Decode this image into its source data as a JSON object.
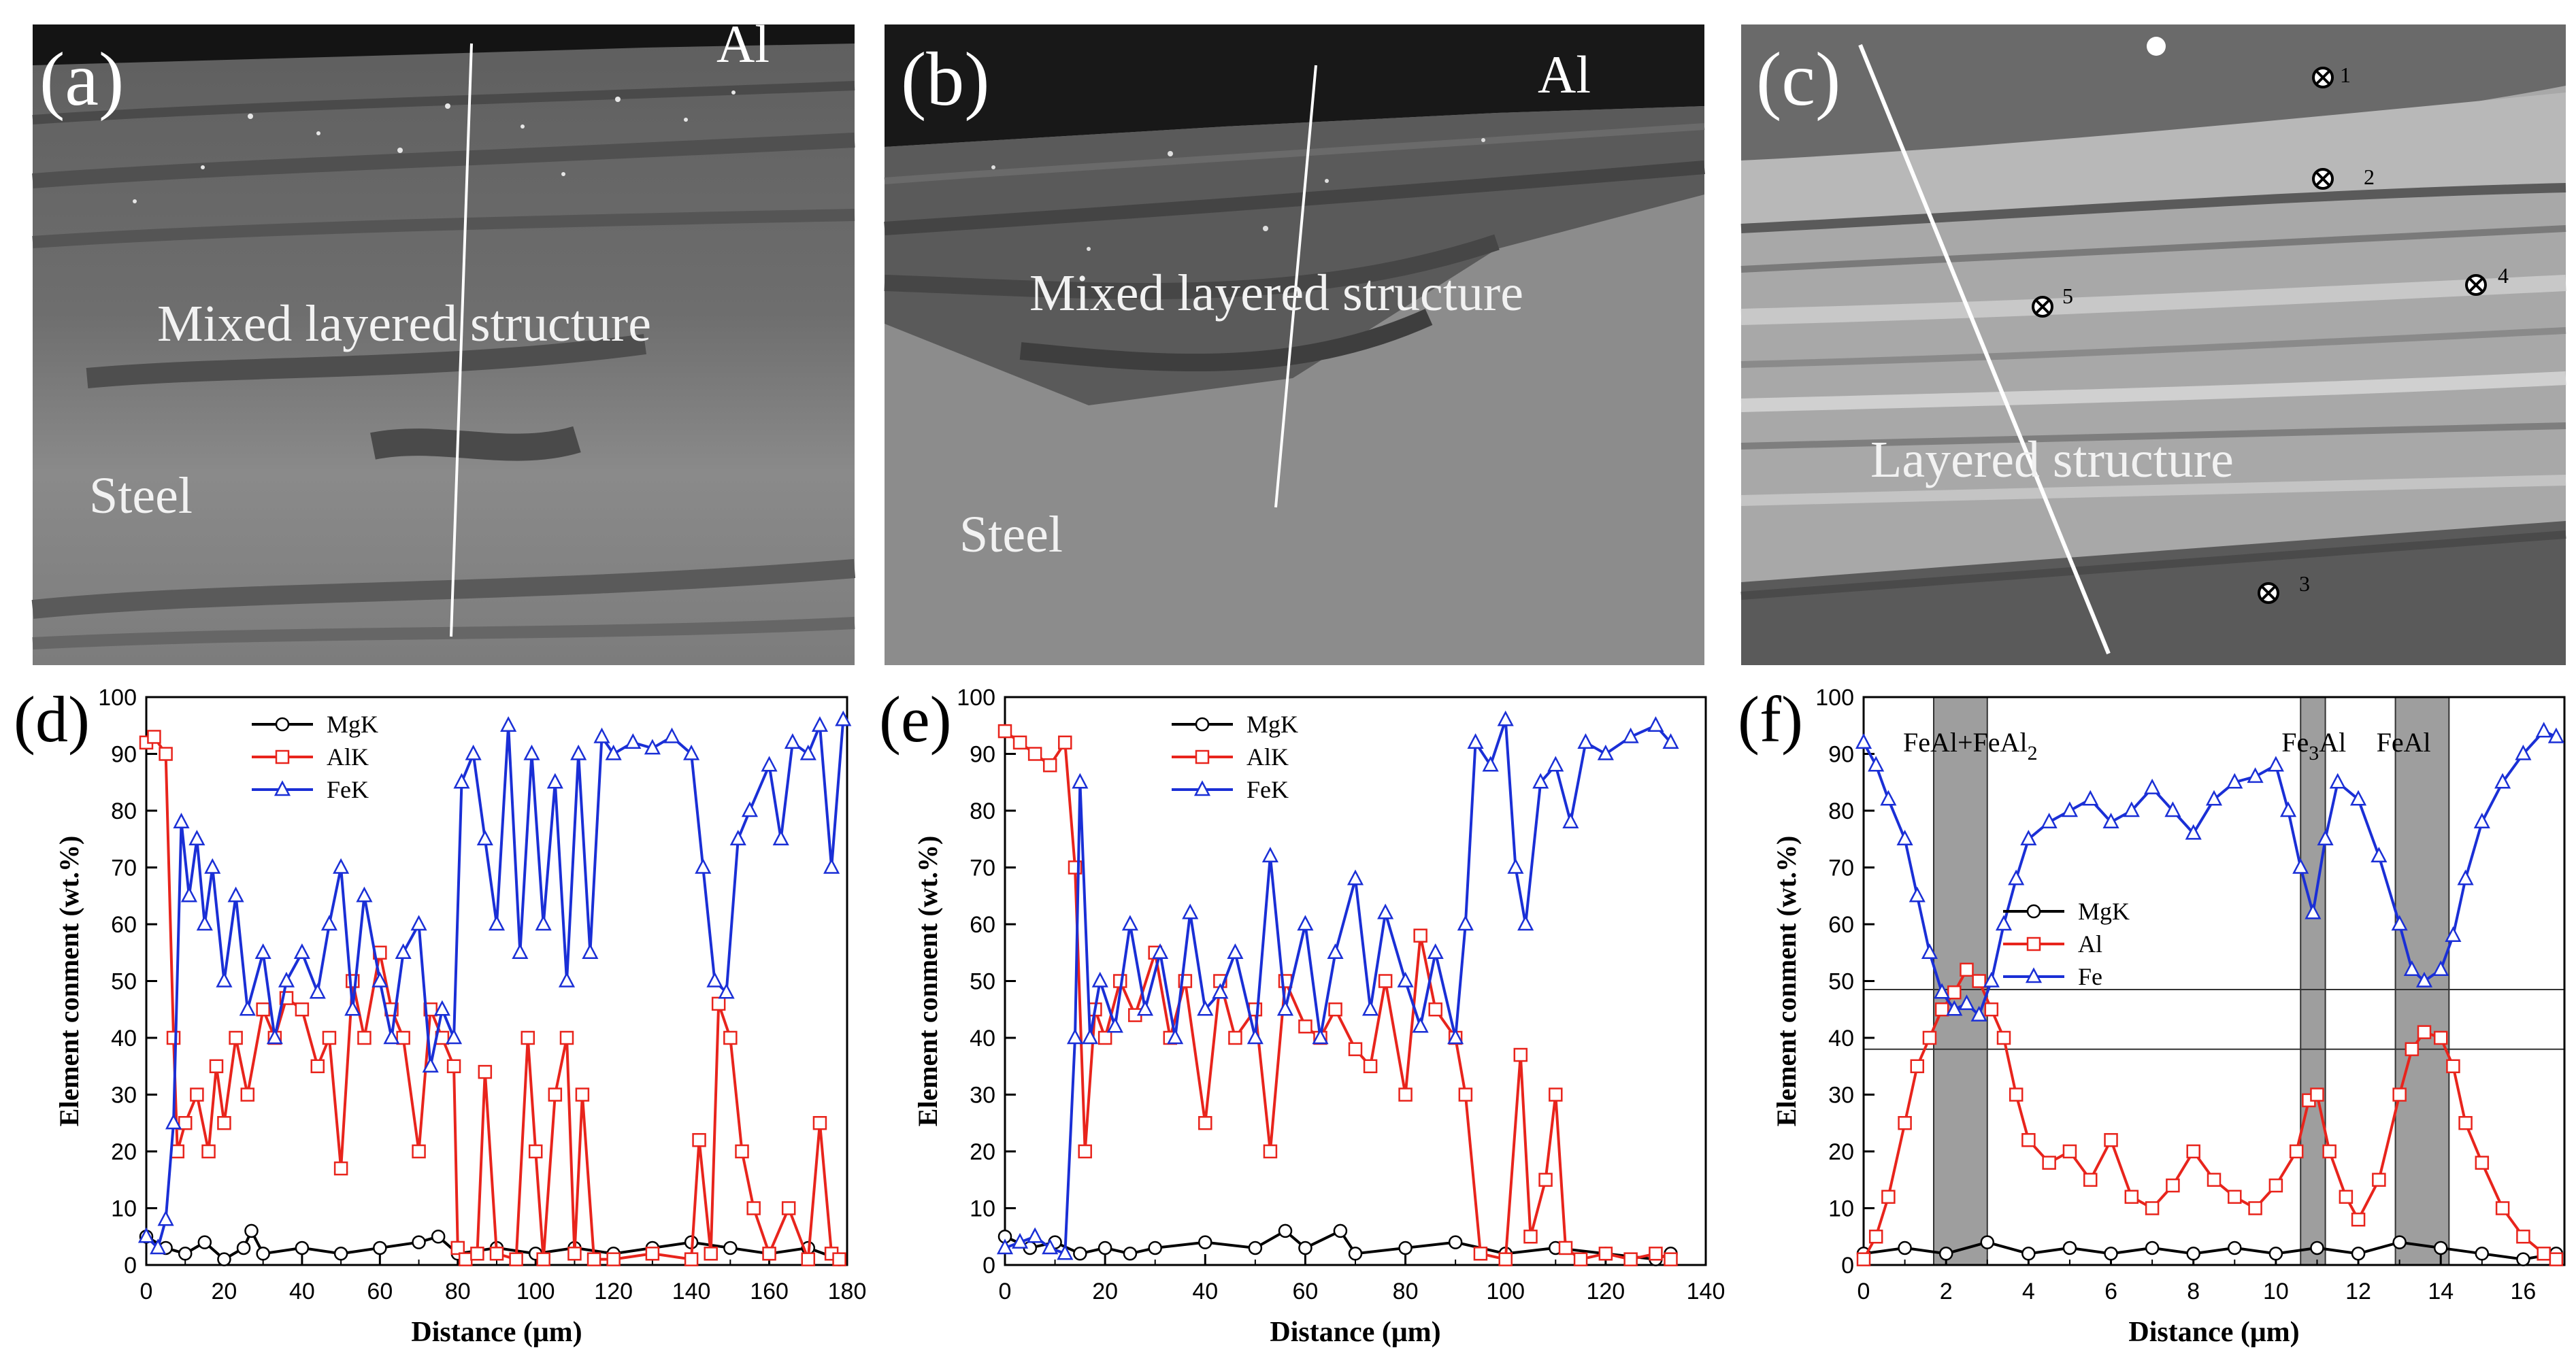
{
  "colors": {
    "mg": "#000000",
    "al": "#e8241c",
    "fe": "#1a2fd6",
    "band": "#9e9e9e"
  },
  "panels": {
    "a": {
      "label": "(a)",
      "top_label": "Al",
      "mid_label": "Mixed layered structure",
      "low_label": "Steel"
    },
    "b": {
      "label": "(b)",
      "top_label": "Al",
      "mid_label": "Mixed layered structure",
      "low_label": "Steel"
    },
    "c": {
      "label": "(c)",
      "mid_label": "Layered structure",
      "points": [
        "1",
        "2",
        "3",
        "4",
        "5"
      ]
    }
  },
  "chart_data": [
    {
      "id": "d",
      "type": "line",
      "panel_label": "(d)",
      "xlabel": "Distance (μm)",
      "ylabel": "Element conment (wt.%)",
      "xlim": [
        0,
        180
      ],
      "ylim": [
        0,
        100
      ],
      "xticks": [
        0,
        20,
        40,
        60,
        80,
        100,
        120,
        140,
        160,
        180
      ],
      "yticks": [
        0,
        10,
        20,
        30,
        40,
        50,
        60,
        70,
        80,
        90,
        100
      ],
      "legend": [
        "MgK",
        "AlK",
        "FeK"
      ],
      "series": [
        {
          "name": "MgK",
          "color": "#000000",
          "marker": "circle",
          "x": [
            0,
            5,
            10,
            15,
            20,
            25,
            27,
            30,
            40,
            50,
            60,
            70,
            75,
            80,
            90,
            100,
            110,
            120,
            130,
            140,
            150,
            160,
            170,
            178
          ],
          "y": [
            5,
            3,
            2,
            4,
            1,
            3,
            6,
            2,
            3,
            2,
            3,
            4,
            5,
            2,
            3,
            2,
            3,
            2,
            3,
            4,
            3,
            2,
            3,
            1
          ]
        },
        {
          "name": "AlK",
          "color": "#e8241c",
          "marker": "square",
          "x": [
            0,
            2,
            5,
            7,
            8,
            10,
            13,
            16,
            18,
            20,
            23,
            26,
            30,
            33,
            36,
            40,
            44,
            47,
            50,
            53,
            56,
            60,
            63,
            66,
            70,
            73,
            76,
            79,
            80,
            82,
            85,
            87,
            90,
            95,
            98,
            100,
            102,
            105,
            108,
            110,
            112,
            115,
            120,
            130,
            140,
            142,
            145,
            147,
            150,
            153,
            156,
            160,
            165,
            170,
            173,
            176,
            178
          ],
          "y": [
            92,
            93,
            90,
            40,
            20,
            25,
            30,
            20,
            35,
            25,
            40,
            30,
            45,
            40,
            47,
            45,
            35,
            40,
            17,
            50,
            40,
            55,
            45,
            40,
            20,
            45,
            40,
            35,
            3,
            1,
            2,
            34,
            2,
            1,
            40,
            20,
            1,
            30,
            40,
            2,
            30,
            1,
            1,
            2,
            1,
            22,
            2,
            46,
            40,
            20,
            10,
            2,
            10,
            1,
            25,
            2,
            1
          ]
        },
        {
          "name": "FeK",
          "color": "#1a2fd6",
          "marker": "triangle",
          "x": [
            0,
            3,
            5,
            7,
            9,
            11,
            13,
            15,
            17,
            20,
            23,
            26,
            30,
            33,
            36,
            40,
            44,
            47,
            50,
            53,
            56,
            60,
            63,
            66,
            70,
            73,
            76,
            79,
            81,
            84,
            87,
            90,
            93,
            96,
            99,
            102,
            105,
            108,
            111,
            114,
            117,
            120,
            125,
            130,
            135,
            140,
            143,
            146,
            149,
            152,
            155,
            160,
            163,
            166,
            170,
            173,
            176,
            179
          ],
          "y": [
            5,
            3,
            8,
            25,
            78,
            65,
            75,
            60,
            70,
            50,
            65,
            45,
            55,
            40,
            50,
            55,
            48,
            60,
            70,
            45,
            65,
            50,
            40,
            55,
            60,
            35,
            45,
            40,
            85,
            90,
            75,
            60,
            95,
            55,
            90,
            60,
            85,
            50,
            90,
            55,
            93,
            90,
            92,
            91,
            93,
            90,
            70,
            50,
            48,
            75,
            80,
            88,
            75,
            92,
            90,
            95,
            70,
            96
          ]
        }
      ]
    },
    {
      "id": "e",
      "type": "line",
      "panel_label": "(e)",
      "xlabel": "Distance (μm)",
      "ylabel": "Element conment (wt.%)",
      "xlim": [
        0,
        140
      ],
      "ylim": [
        0,
        100
      ],
      "xticks": [
        0,
        20,
        40,
        60,
        80,
        100,
        120,
        140
      ],
      "yticks": [
        0,
        10,
        20,
        30,
        40,
        50,
        60,
        70,
        80,
        90,
        100
      ],
      "legend": [
        "MgK",
        "AlK",
        "FeK"
      ],
      "series": [
        {
          "name": "MgK",
          "color": "#000000",
          "marker": "circle",
          "x": [
            0,
            5,
            10,
            15,
            20,
            25,
            30,
            40,
            50,
            56,
            60,
            67,
            70,
            80,
            90,
            100,
            110,
            120,
            130,
            133
          ],
          "y": [
            5,
            3,
            4,
            2,
            3,
            2,
            3,
            4,
            3,
            6,
            3,
            6,
            2,
            3,
            4,
            2,
            3,
            2,
            1,
            2
          ]
        },
        {
          "name": "AlK",
          "color": "#e8241c",
          "marker": "square",
          "x": [
            0,
            3,
            6,
            9,
            12,
            14,
            16,
            18,
            20,
            23,
            26,
            30,
            33,
            36,
            40,
            43,
            46,
            50,
            53,
            56,
            60,
            63,
            66,
            70,
            73,
            76,
            80,
            83,
            86,
            90,
            92,
            95,
            100,
            103,
            105,
            108,
            110,
            112,
            115,
            120,
            125,
            130,
            133
          ],
          "y": [
            94,
            92,
            90,
            88,
            92,
            70,
            20,
            45,
            40,
            50,
            44,
            55,
            40,
            50,
            25,
            50,
            40,
            45,
            20,
            50,
            42,
            40,
            45,
            38,
            35,
            50,
            30,
            58,
            45,
            40,
            30,
            2,
            1,
            37,
            5,
            15,
            30,
            3,
            1,
            2,
            1,
            2,
            1
          ]
        },
        {
          "name": "FeK",
          "color": "#1a2fd6",
          "marker": "triangle",
          "x": [
            0,
            3,
            6,
            9,
            12,
            14,
            15,
            17,
            19,
            22,
            25,
            28,
            31,
            34,
            37,
            40,
            43,
            46,
            50,
            53,
            56,
            60,
            63,
            66,
            70,
            73,
            76,
            80,
            83,
            86,
            90,
            92,
            94,
            97,
            100,
            102,
            104,
            107,
            110,
            113,
            116,
            120,
            125,
            130,
            133
          ],
          "y": [
            3,
            4,
            5,
            3,
            2,
            40,
            85,
            40,
            50,
            42,
            60,
            45,
            55,
            40,
            62,
            45,
            48,
            55,
            40,
            72,
            45,
            60,
            40,
            55,
            68,
            45,
            62,
            50,
            42,
            55,
            40,
            60,
            92,
            88,
            96,
            70,
            60,
            85,
            88,
            78,
            92,
            90,
            93,
            95,
            92
          ]
        }
      ]
    },
    {
      "id": "f",
      "type": "line",
      "panel_label": "(f)",
      "xlabel": "Distance (μm)",
      "ylabel": "Element conment (wt.%)",
      "xlim": [
        0,
        17
      ],
      "ylim": [
        0,
        100
      ],
      "xticks": [
        0,
        2,
        4,
        6,
        8,
        10,
        12,
        14,
        16
      ],
      "yticks": [
        0,
        10,
        20,
        30,
        40,
        50,
        60,
        70,
        80,
        90,
        100
      ],
      "legend": [
        "MgK",
        "Al",
        "Fe"
      ],
      "bands": [
        {
          "x0": 1.7,
          "x1": 3.0,
          "label": "FeAl+FeAl",
          "sub": "2",
          "tail": ""
        },
        {
          "x0": 10.6,
          "x1": 11.2,
          "label": "Fe",
          "sub": "3",
          "tail": "Al"
        },
        {
          "x0": 12.9,
          "x1": 14.2,
          "label": "FeAl",
          "sub": "",
          "tail": ""
        }
      ],
      "hlines": [
        48.5,
        38
      ],
      "series": [
        {
          "name": "MgK",
          "color": "#000000",
          "marker": "circle",
          "x": [
            0,
            1,
            2,
            3,
            4,
            5,
            6,
            7,
            8,
            9,
            10,
            11,
            12,
            13,
            14,
            15,
            16,
            16.8
          ],
          "y": [
            2,
            3,
            2,
            4,
            2,
            3,
            2,
            3,
            2,
            3,
            2,
            3,
            2,
            4,
            3,
            2,
            1,
            2
          ]
        },
        {
          "name": "Al",
          "color": "#e8241c",
          "marker": "square",
          "x": [
            0,
            0.3,
            0.6,
            1.0,
            1.3,
            1.6,
            1.9,
            2.2,
            2.5,
            2.8,
            3.1,
            3.4,
            3.7,
            4.0,
            4.5,
            5.0,
            5.5,
            6.0,
            6.5,
            7.0,
            7.5,
            8.0,
            8.5,
            9.0,
            9.5,
            10.0,
            10.5,
            10.8,
            11.0,
            11.3,
            11.7,
            12.0,
            12.5,
            13.0,
            13.3,
            13.6,
            14.0,
            14.3,
            14.6,
            15.0,
            15.5,
            16.0,
            16.5,
            16.8
          ],
          "y": [
            1,
            5,
            12,
            25,
            35,
            40,
            45,
            48,
            52,
            50,
            45,
            40,
            30,
            22,
            18,
            20,
            15,
            22,
            12,
            10,
            14,
            20,
            15,
            12,
            10,
            14,
            20,
            29,
            30,
            20,
            12,
            8,
            15,
            30,
            38,
            41,
            40,
            35,
            25,
            18,
            10,
            5,
            2,
            1
          ]
        },
        {
          "name": "Fe",
          "color": "#1a2fd6",
          "marker": "triangle",
          "x": [
            0,
            0.3,
            0.6,
            1.0,
            1.3,
            1.6,
            1.9,
            2.2,
            2.5,
            2.8,
            3.1,
            3.4,
            3.7,
            4.0,
            4.5,
            5.0,
            5.5,
            6.0,
            6.5,
            7.0,
            7.5,
            8.0,
            8.5,
            9.0,
            9.5,
            10.0,
            10.3,
            10.6,
            10.9,
            11.2,
            11.5,
            12.0,
            12.5,
            13.0,
            13.3,
            13.6,
            14.0,
            14.3,
            14.6,
            15.0,
            15.5,
            16.0,
            16.5,
            16.8
          ],
          "y": [
            92,
            88,
            82,
            75,
            65,
            55,
            48,
            45,
            46,
            44,
            50,
            60,
            68,
            75,
            78,
            80,
            82,
            78,
            80,
            84,
            80,
            76,
            82,
            85,
            86,
            88,
            80,
            70,
            62,
            75,
            85,
            82,
            72,
            60,
            52,
            50,
            52,
            58,
            68,
            78,
            85,
            90,
            94,
            93
          ]
        }
      ]
    }
  ]
}
